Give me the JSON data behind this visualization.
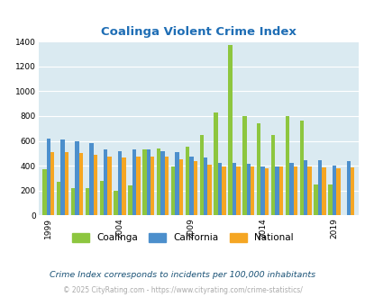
{
  "title": "Coalinga Violent Crime Index",
  "years": [
    1999,
    2000,
    2001,
    2002,
    2003,
    2004,
    2005,
    2006,
    2007,
    2008,
    2009,
    2010,
    2011,
    2012,
    2013,
    2014,
    2015,
    2016,
    2017,
    2018,
    2019,
    2020
  ],
  "coalinga": [
    375,
    270,
    220,
    220,
    280,
    200,
    240,
    530,
    540,
    390,
    550,
    650,
    830,
    1375,
    800,
    740,
    650,
    800,
    760,
    250,
    250,
    0
  ],
  "california": [
    620,
    610,
    600,
    585,
    530,
    520,
    530,
    530,
    520,
    510,
    475,
    465,
    420,
    425,
    415,
    395,
    390,
    420,
    445,
    445,
    400,
    440
  ],
  "national": [
    510,
    510,
    500,
    490,
    475,
    465,
    470,
    475,
    470,
    455,
    435,
    405,
    395,
    390,
    390,
    380,
    395,
    395,
    395,
    385,
    380,
    385
  ],
  "coalinga_color": "#8dc63f",
  "california_color": "#4c8fcc",
  "national_color": "#f5a623",
  "bg_color": "#daeaf1",
  "grid_color": "#ffffff",
  "title_color": "#1f6eb5",
  "xlabel_ticks": [
    1999,
    2004,
    2009,
    2014,
    2019
  ],
  "ylim": [
    0,
    1400
  ],
  "yticks": [
    0,
    200,
    400,
    600,
    800,
    1000,
    1200,
    1400
  ],
  "footnote": "Crime Index corresponds to incidents per 100,000 inhabitants",
  "copyright": "© 2025 CityRating.com - https://www.cityrating.com/crime-statistics/",
  "legend_labels": [
    "Coalinga",
    "California",
    "National"
  ]
}
